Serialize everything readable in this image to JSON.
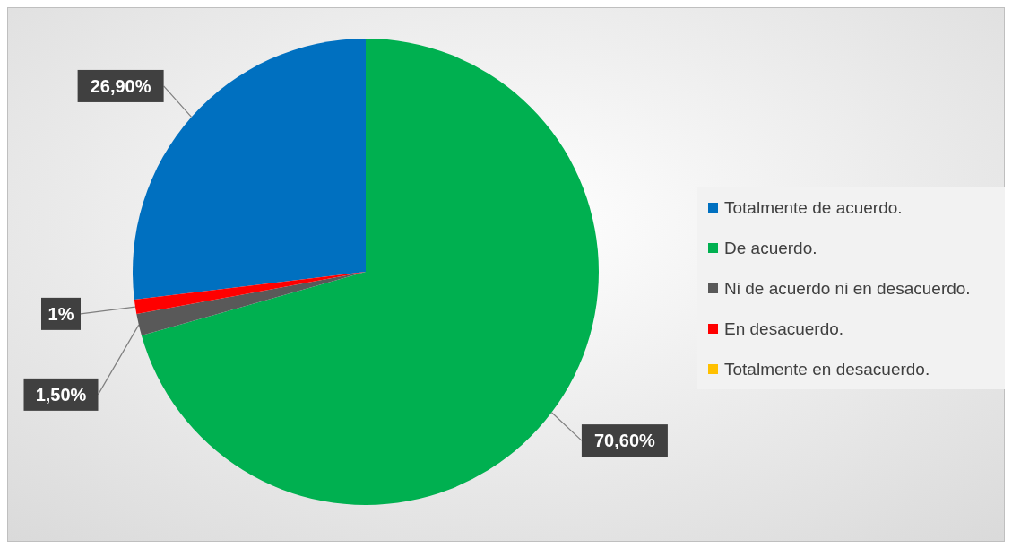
{
  "chart_data": {
    "type": "pie",
    "categories": [
      "Totalmente de acuerdo.",
      "De acuerdo.",
      "Ni de acuerdo ni en desacuerdo.",
      "En desacuerdo.",
      "Totalmente en desacuerdo."
    ],
    "values": [
      26.9,
      70.6,
      1.5,
      1,
      0
    ],
    "colors": [
      "#0070c0",
      "#00b050",
      "#595959",
      "#ff0000",
      "#ffc000"
    ],
    "value_labels": [
      "26,90%",
      "70,60%",
      "1,50%",
      "1%",
      null
    ],
    "legend": "right"
  }
}
